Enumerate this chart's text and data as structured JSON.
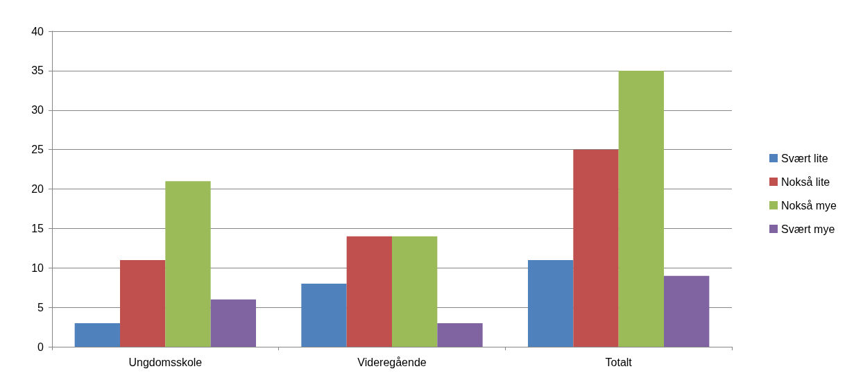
{
  "chart_data": {
    "type": "bar",
    "categories": [
      "Ungdomsskole",
      "Videregående",
      "Totalt"
    ],
    "series": [
      {
        "name": "Svært lite",
        "color": "#4f81bd",
        "values": [
          3,
          8,
          11
        ]
      },
      {
        "name": "Nokså lite",
        "color": "#c0504d",
        "values": [
          11,
          14,
          25
        ]
      },
      {
        "name": "Nokså mye",
        "color": "#9bbb59",
        "values": [
          21,
          14,
          35
        ]
      },
      {
        "name": "Svært mye",
        "color": "#8064a2",
        "values": [
          6,
          3,
          9
        ]
      }
    ],
    "ylim": [
      0,
      40
    ],
    "yticks": [
      0,
      5,
      10,
      15,
      20,
      25,
      30,
      35,
      40
    ],
    "grid": "y",
    "legend": "right"
  }
}
